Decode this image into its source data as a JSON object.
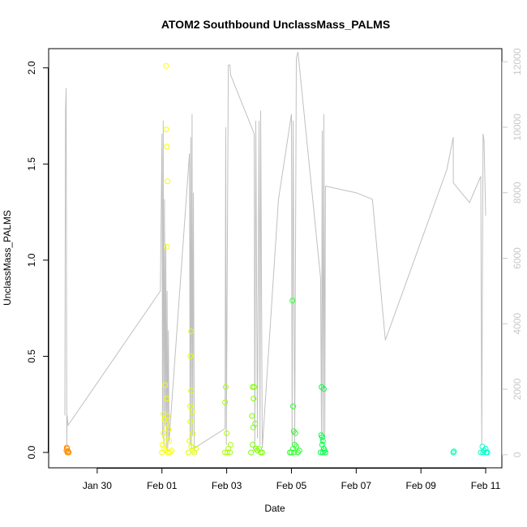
{
  "chart_data": {
    "type": "scatter",
    "title": "ATOM2 Southbound UnclassMass_PALMS",
    "xlabel": "Date",
    "ylabel": "UnclassMass_PALMS",
    "x_ticks": [
      "Jan 30",
      "Feb 01",
      "Feb 03",
      "Feb 05",
      "Feb 07",
      "Feb 09",
      "Feb 11"
    ],
    "x_range_days_relative_to_feb01": [
      -3.5,
      10.5
    ],
    "ylim": [
      -0.08,
      2.1
    ],
    "y_ticks": [
      "0.0",
      "0.5",
      "1.0",
      "1.5",
      "2.0"
    ],
    "y2lim": [
      -400,
      12400
    ],
    "y2_ticks": [
      "0",
      "2000",
      "4000",
      "6000",
      "8000",
      "10000",
      "12000"
    ],
    "grid": false,
    "color_scale": "orange-yellow-green-cyan by time",
    "series": [
      {
        "kind": "points",
        "points": [
          {
            "x": -2.93,
            "y": 0.02,
            "color": "#FF8C00"
          },
          {
            "x": -2.95,
            "y": 0.01,
            "color": "#FF8C00"
          },
          {
            "x": -2.92,
            "y": 0.0,
            "color": "#FF8C00"
          },
          {
            "x": -2.9,
            "y": 0.005,
            "color": "#FF8C00"
          },
          {
            "x": -2.88,
            "y": 0.0,
            "color": "#FF8C00"
          },
          {
            "x": -2.94,
            "y": 0.025,
            "color": "#FF8C00"
          },
          {
            "x": 0.13,
            "y": 2.01,
            "color": "#FFFF00"
          },
          {
            "x": 0.13,
            "y": 1.68,
            "color": "#F4FF00"
          },
          {
            "x": 0.15,
            "y": 1.59,
            "color": "#F4FF00"
          },
          {
            "x": 0.17,
            "y": 1.41,
            "color": "#F4FF00"
          },
          {
            "x": 0.15,
            "y": 1.07,
            "color": "#F4FF00"
          },
          {
            "x": 0.1,
            "y": 0.35,
            "color": "#F4FF00"
          },
          {
            "x": 0.15,
            "y": 0.28,
            "color": "#F4FF00"
          },
          {
            "x": 0.05,
            "y": 0.2,
            "color": "#F4FF00"
          },
          {
            "x": 0.08,
            "y": 0.17,
            "color": "#F4FF00"
          },
          {
            "x": 0.12,
            "y": 0.15,
            "color": "#F4FF00"
          },
          {
            "x": 0.18,
            "y": 0.19,
            "color": "#F4FF00"
          },
          {
            "x": 0.2,
            "y": 0.12,
            "color": "#F4FF00"
          },
          {
            "x": 0.05,
            "y": 0.1,
            "color": "#F4FF00"
          },
          {
            "x": 0.1,
            "y": 0.08,
            "color": "#F4FF00"
          },
          {
            "x": 0.22,
            "y": 0.06,
            "color": "#F4FF00"
          },
          {
            "x": 0.02,
            "y": 0.04,
            "color": "#F4FF00"
          },
          {
            "x": 0.07,
            "y": 0.02,
            "color": "#F4FF00"
          },
          {
            "x": 0.12,
            "y": 0.01,
            "color": "#F4FF00"
          },
          {
            "x": 0.18,
            "y": 0.0,
            "color": "#F4FF00"
          },
          {
            "x": 0.25,
            "y": 0.0,
            "color": "#F4FF00"
          },
          {
            "x": 0.0,
            "y": 0.0,
            "color": "#F4FF00"
          },
          {
            "x": 0.3,
            "y": 0.01,
            "color": "#F4FF00"
          },
          {
            "x": 0.9,
            "y": 0.63,
            "color": "#E0FF00"
          },
          {
            "x": 0.88,
            "y": 0.5,
            "color": "#E0FF00"
          },
          {
            "x": 0.9,
            "y": 0.32,
            "color": "#E0FF00"
          },
          {
            "x": 0.87,
            "y": 0.24,
            "color": "#E0FF00"
          },
          {
            "x": 0.93,
            "y": 0.21,
            "color": "#E0FF00"
          },
          {
            "x": 0.88,
            "y": 0.16,
            "color": "#E0FF00"
          },
          {
            "x": 0.95,
            "y": 0.1,
            "color": "#E0FF00"
          },
          {
            "x": 0.85,
            "y": 0.06,
            "color": "#E0FF00"
          },
          {
            "x": 0.9,
            "y": 0.03,
            "color": "#E0FF00"
          },
          {
            "x": 0.95,
            "y": 0.01,
            "color": "#E0FF00"
          },
          {
            "x": 0.82,
            "y": 0.0,
            "color": "#E0FF00"
          },
          {
            "x": 1.0,
            "y": 0.0,
            "color": "#E0FF00"
          },
          {
            "x": 1.05,
            "y": 0.02,
            "color": "#E0FF00"
          },
          {
            "x": 1.97,
            "y": 0.34,
            "color": "#A8FF00"
          },
          {
            "x": 1.95,
            "y": 0.26,
            "color": "#A8FF00"
          },
          {
            "x": 2.0,
            "y": 0.1,
            "color": "#A8FF00"
          },
          {
            "x": 2.12,
            "y": 0.04,
            "color": "#A8FF00"
          },
          {
            "x": 2.05,
            "y": 0.02,
            "color": "#A8FF00"
          },
          {
            "x": 1.95,
            "y": 0.0,
            "color": "#A8FF00"
          },
          {
            "x": 2.02,
            "y": 0.0,
            "color": "#A8FF00"
          },
          {
            "x": 2.1,
            "y": 0.0,
            "color": "#A8FF00"
          },
          {
            "x": 2.8,
            "y": 0.34,
            "color": "#7CFF00"
          },
          {
            "x": 2.85,
            "y": 0.34,
            "color": "#7CFF00"
          },
          {
            "x": 2.83,
            "y": 0.28,
            "color": "#7CFF00"
          },
          {
            "x": 2.78,
            "y": 0.19,
            "color": "#7CFF00"
          },
          {
            "x": 2.82,
            "y": 0.13,
            "color": "#7CFF00"
          },
          {
            "x": 2.88,
            "y": 0.15,
            "color": "#7CFF00"
          },
          {
            "x": 2.8,
            "y": 0.04,
            "color": "#7CFF00"
          },
          {
            "x": 2.9,
            "y": 0.02,
            "color": "#7CFF00"
          },
          {
            "x": 2.95,
            "y": 0.01,
            "color": "#7CFF00"
          },
          {
            "x": 3.0,
            "y": 0.02,
            "color": "#7CFF00"
          },
          {
            "x": 3.05,
            "y": 0.0,
            "color": "#7CFF00"
          },
          {
            "x": 3.1,
            "y": 0.0,
            "color": "#7CFF00"
          },
          {
            "x": 2.75,
            "y": 0.0,
            "color": "#7CFF00"
          },
          {
            "x": 4.03,
            "y": 0.79,
            "color": "#2CFF2C"
          },
          {
            "x": 4.05,
            "y": 0.24,
            "color": "#2CFF2C"
          },
          {
            "x": 4.07,
            "y": 0.11,
            "color": "#2CFF2C"
          },
          {
            "x": 4.12,
            "y": 0.1,
            "color": "#2CFF2C"
          },
          {
            "x": 4.1,
            "y": 0.04,
            "color": "#2CFF2C"
          },
          {
            "x": 4.15,
            "y": 0.03,
            "color": "#2CFF2C"
          },
          {
            "x": 4.05,
            "y": 0.02,
            "color": "#2CFF2C"
          },
          {
            "x": 3.95,
            "y": 0.0,
            "color": "#2CFF2C"
          },
          {
            "x": 4.0,
            "y": 0.0,
            "color": "#2CFF2C"
          },
          {
            "x": 4.08,
            "y": 0.0,
            "color": "#2CFF2C"
          },
          {
            "x": 4.2,
            "y": 0.0,
            "color": "#2CFF2C"
          },
          {
            "x": 4.25,
            "y": 0.01,
            "color": "#2CFF2C"
          },
          {
            "x": 4.93,
            "y": 0.34,
            "color": "#00FF44"
          },
          {
            "x": 5.0,
            "y": 0.33,
            "color": "#00FF44"
          },
          {
            "x": 4.92,
            "y": 0.09,
            "color": "#00FF44"
          },
          {
            "x": 4.95,
            "y": 0.08,
            "color": "#00FF44"
          },
          {
            "x": 4.97,
            "y": 0.06,
            "color": "#00FF44"
          },
          {
            "x": 4.95,
            "y": 0.04,
            "color": "#00FF44"
          },
          {
            "x": 5.0,
            "y": 0.02,
            "color": "#00FF44"
          },
          {
            "x": 5.02,
            "y": 0.01,
            "color": "#00FF44"
          },
          {
            "x": 4.9,
            "y": 0.0,
            "color": "#00FF44"
          },
          {
            "x": 5.05,
            "y": 0.0,
            "color": "#00FF44"
          },
          {
            "x": 4.97,
            "y": 0.0,
            "color": "#00FF44"
          },
          {
            "x": 9.0,
            "y": 0.0,
            "color": "#00FFB0"
          },
          {
            "x": 9.02,
            "y": 0.005,
            "color": "#00FFB0"
          },
          {
            "x": 9.9,
            "y": 0.03,
            "color": "#00FFC8"
          },
          {
            "x": 10.0,
            "y": 0.02,
            "color": "#00FFC8"
          },
          {
            "x": 9.95,
            "y": 0.01,
            "color": "#00FFC8"
          },
          {
            "x": 9.85,
            "y": 0.0,
            "color": "#00FFC8"
          },
          {
            "x": 10.05,
            "y": 0.0,
            "color": "#00FFC8"
          },
          {
            "x": 9.92,
            "y": 0.0,
            "color": "#00FFC8"
          },
          {
            "x": 10.02,
            "y": 0.0,
            "color": "#00FFC8"
          }
        ]
      },
      {
        "kind": "line",
        "axis": "right",
        "points": [
          [
            -3.0,
            1200
          ],
          [
            -2.98,
            10500
          ],
          [
            -2.96,
            11200
          ],
          [
            -2.94,
            300
          ],
          [
            -2.93,
            1200
          ],
          [
            -2.9,
            900
          ],
          [
            -0.05,
            5000
          ],
          [
            0.0,
            9800
          ],
          [
            0.02,
            600
          ],
          [
            0.04,
            10200
          ],
          [
            0.06,
            300
          ],
          [
            0.08,
            7800
          ],
          [
            0.1,
            900
          ],
          [
            0.12,
            6400
          ],
          [
            0.14,
            200
          ],
          [
            0.16,
            5000
          ],
          [
            0.18,
            100
          ],
          [
            0.2,
            3800
          ],
          [
            0.22,
            400
          ],
          [
            0.85,
            9200
          ],
          [
            0.87,
            300
          ],
          [
            0.89,
            9700
          ],
          [
            0.91,
            200
          ],
          [
            0.93,
            10400
          ],
          [
            0.95,
            600
          ],
          [
            0.97,
            8000
          ],
          [
            1.0,
            200
          ],
          [
            1.95,
            800
          ],
          [
            1.97,
            10000
          ],
          [
            1.99,
            300
          ],
          [
            2.05,
            11900
          ],
          [
            2.1,
            11900
          ],
          [
            2.12,
            11600
          ],
          [
            2.85,
            9800
          ],
          [
            2.87,
            100
          ],
          [
            2.9,
            10200
          ],
          [
            2.95,
            500
          ],
          [
            3.0,
            10200
          ],
          [
            3.03,
            300
          ],
          [
            3.05,
            10500
          ],
          [
            3.1,
            200
          ],
          [
            3.6,
            7800
          ],
          [
            4.0,
            10400
          ],
          [
            4.02,
            300
          ],
          [
            4.05,
            10200
          ],
          [
            4.1,
            300
          ],
          [
            4.15,
            12100
          ],
          [
            4.2,
            12300
          ],
          [
            4.9,
            5400
          ],
          [
            4.93,
            300
          ],
          [
            4.95,
            9900
          ],
          [
            4.98,
            200
          ],
          [
            5.0,
            10400
          ],
          [
            5.03,
            500
          ],
          [
            5.05,
            8200
          ],
          [
            6.0,
            8000
          ],
          [
            6.5,
            7800
          ],
          [
            6.9,
            3500
          ],
          [
            8.8,
            8700
          ],
          [
            9.0,
            9700
          ],
          [
            9.0,
            8300
          ],
          [
            9.5,
            7700
          ],
          [
            9.85,
            8500
          ],
          [
            9.88,
            300
          ],
          [
            9.92,
            9800
          ],
          [
            9.95,
            9600
          ],
          [
            10.0,
            7300
          ]
        ]
      }
    ]
  }
}
